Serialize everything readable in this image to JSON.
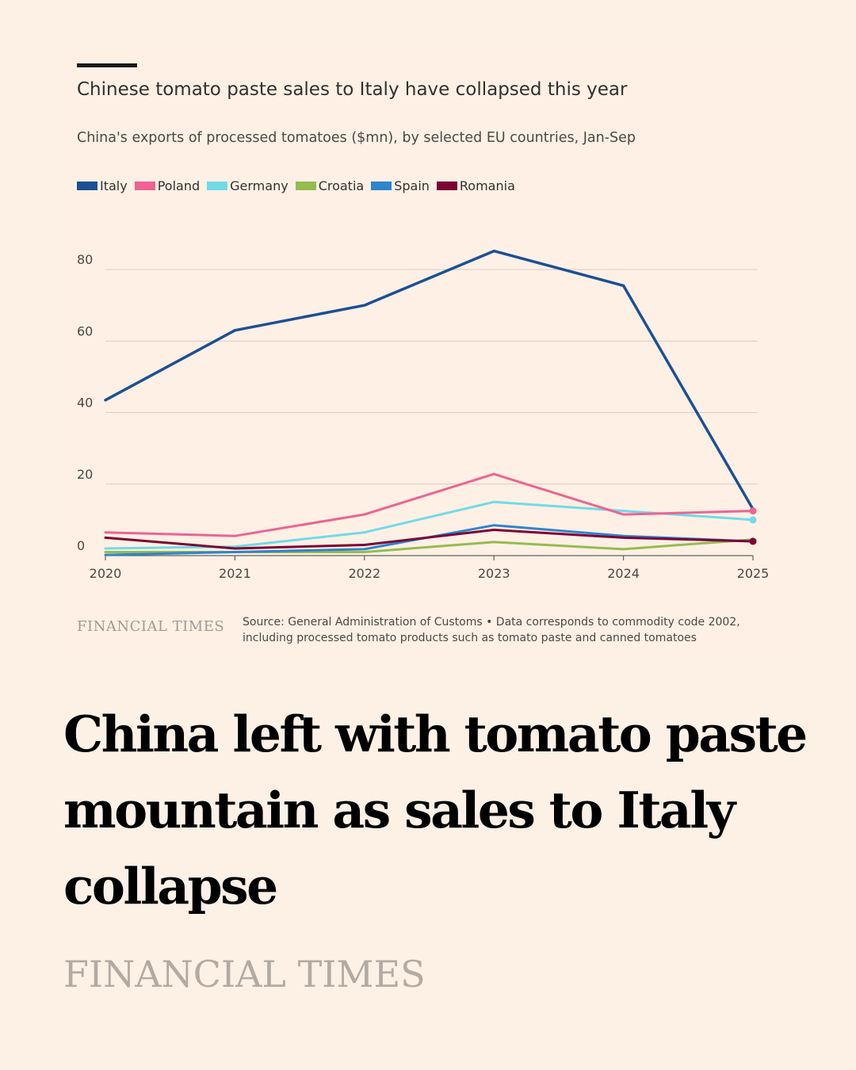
{
  "colors": {
    "Italy": "#1b5095",
    "Poland": "#ef6392",
    "Germany": "#70dbe6",
    "Croatia": "#95bc4e",
    "Spain": "#2d85cb",
    "Romania": "#7c0234",
    "grid": "#d9ccc1",
    "axis": "#66605c"
  },
  "chart_data": {
    "type": "line",
    "title": "Chinese tomato paste sales to Italy have collapsed this year",
    "subtitle": "China's exports of processed tomatoes ($mn), by selected EU countries, Jan-Sep",
    "x": [
      "2020",
      "2021",
      "2022",
      "2023",
      "2024",
      "2025"
    ],
    "ylim": [
      0,
      90
    ],
    "yticks": [
      "0",
      "20",
      "40",
      "60",
      "80"
    ],
    "grid": true,
    "legend": "top-left",
    "series": [
      {
        "name": "Italy",
        "values": [
          43.5,
          63,
          70,
          85.2,
          75.5,
          13
        ]
      },
      {
        "name": "Poland",
        "values": [
          6.5,
          5.5,
          11.5,
          22.8,
          11.5,
          12.5
        ]
      },
      {
        "name": "Germany",
        "values": [
          2,
          2.5,
          6.5,
          15,
          12.5,
          10
        ]
      },
      {
        "name": "Croatia",
        "values": [
          1,
          1,
          1,
          3.8,
          1.8,
          4.5
        ]
      },
      {
        "name": "Spain",
        "values": [
          0.2,
          1,
          1.8,
          8.5,
          5.5,
          4
        ]
      },
      {
        "name": "Romania",
        "values": [
          5,
          2,
          3,
          7.2,
          5,
          4
        ]
      }
    ],
    "end_markers": [
      "Poland",
      "Germany",
      "Romania"
    ]
  },
  "source": {
    "brand": "FINANCIAL TIMES",
    "text": "Source: General Administration of Customs • Data corresponds to commodity code 2002, including processed tomato products such as tomato paste and canned tomatoes"
  },
  "headline": "China left with tomato paste mountain as sales to Italy collapse",
  "footer_brand": "FINANCIAL TIMES"
}
